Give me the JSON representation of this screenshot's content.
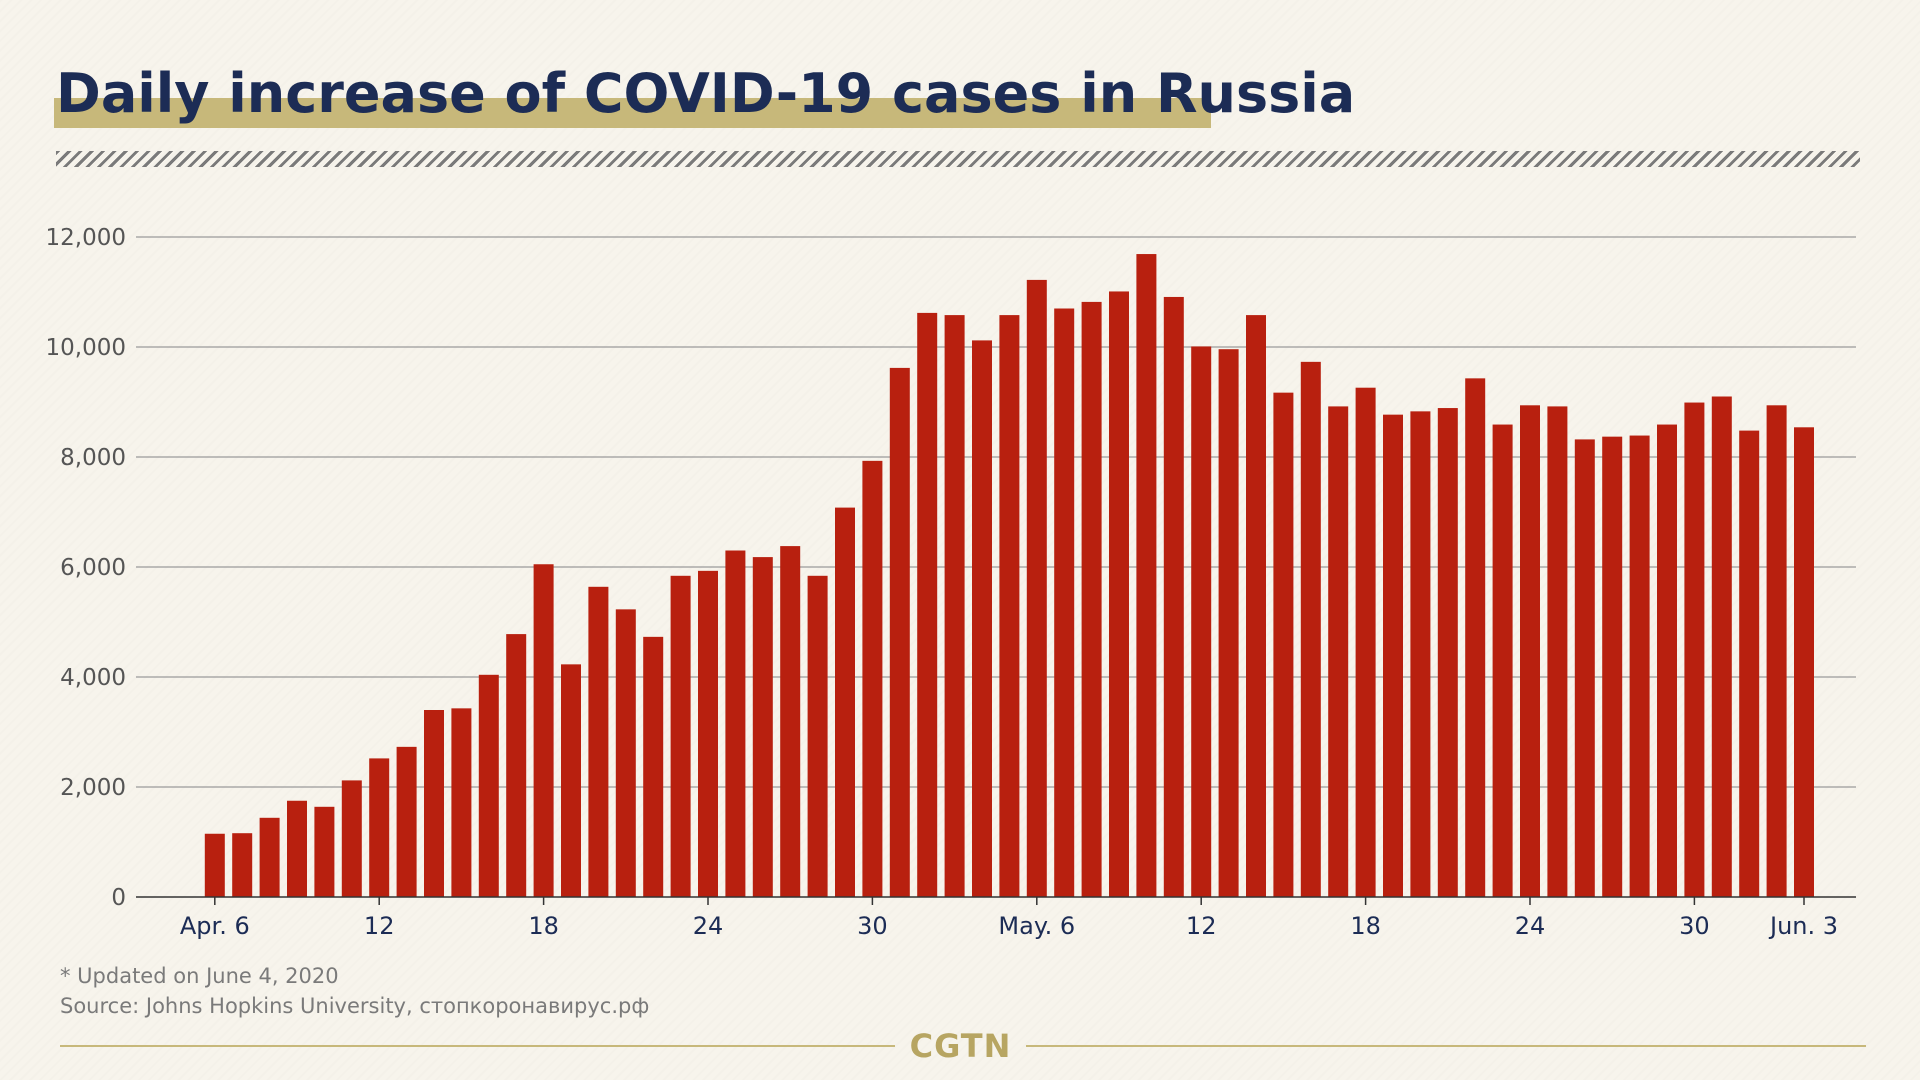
{
  "header": {
    "title": "Daily increase of COVID-19 cases in Russia"
  },
  "chart_data": {
    "type": "bar",
    "title": "Daily increase of COVID-19 cases in Russia",
    "xlabel": "",
    "ylabel": "",
    "ylim": [
      0,
      12000
    ],
    "yticks": [
      0,
      2000,
      4000,
      6000,
      8000,
      10000,
      12000
    ],
    "ytick_labels": [
      "0",
      "2,000",
      "4,000",
      "6,000",
      "8,000",
      "10,000",
      "12,000"
    ],
    "grid": true,
    "bar_color": "#b8200f",
    "categories": [
      "Apr. 4",
      "Apr. 5",
      "Apr. 6",
      "Apr. 7",
      "Apr. 8",
      "Apr. 9",
      "Apr. 10",
      "Apr. 11",
      "Apr. 12",
      "Apr. 13",
      "Apr. 14",
      "Apr. 15",
      "Apr. 16",
      "Apr. 17",
      "Apr. 18",
      "Apr. 19",
      "Apr. 20",
      "Apr. 21",
      "Apr. 22",
      "Apr. 23",
      "Apr. 24",
      "Apr. 25",
      "Apr. 26",
      "Apr. 27",
      "Apr. 28",
      "Apr. 29",
      "Apr. 30",
      "May 1",
      "May 2",
      "May 3",
      "May 4",
      "May 5",
      "May 6",
      "May 7",
      "May 8",
      "May 9",
      "May 10",
      "May 11",
      "May 12",
      "May 13",
      "May 14",
      "May 15",
      "May 16",
      "May 17",
      "May 18",
      "May 19",
      "May 20",
      "May 21",
      "May 22",
      "May 23",
      "May 24",
      "May 25",
      "May 26",
      "May 27",
      "May 28",
      "May 29",
      "May 30",
      "May 31",
      "Jun. 1",
      "Jun. 2",
      "Jun. 3"
    ],
    "values": [
      0,
      0,
      1150,
      1160,
      1440,
      1750,
      1640,
      2120,
      2520,
      2730,
      3400,
      3430,
      4040,
      4780,
      6050,
      4230,
      5640,
      5230,
      4730,
      5840,
      5930,
      6300,
      6180,
      6380,
      5840,
      7080,
      7930,
      9620,
      10620,
      10580,
      10120,
      10580,
      11220,
      10700,
      10820,
      11010,
      11690,
      10910,
      10010,
      9960,
      10580,
      9170,
      9730,
      8920,
      9260,
      8770,
      8830,
      8890,
      9430,
      8590,
      8940,
      8920,
      8320,
      8370,
      8390,
      8590,
      8990,
      9100,
      8480,
      8940,
      8540
    ],
    "xtick_labels": [
      {
        "index": 2,
        "label": "Apr. 6"
      },
      {
        "index": 8,
        "label": "12"
      },
      {
        "index": 14,
        "label": "18"
      },
      {
        "index": 20,
        "label": "24"
      },
      {
        "index": 26,
        "label": "30"
      },
      {
        "index": 32,
        "label": "May. 6"
      },
      {
        "index": 38,
        "label": "12"
      },
      {
        "index": 44,
        "label": "18"
      },
      {
        "index": 50,
        "label": "24"
      },
      {
        "index": 56,
        "label": "30"
      },
      {
        "index": 60,
        "label": "Jun. 3"
      }
    ]
  },
  "notes": {
    "updated": "* Updated on June 4, 2020",
    "source": "Source: Johns Hopkins University, стопкоронавирус.рф"
  },
  "footer": {
    "brand": "CGTN"
  }
}
